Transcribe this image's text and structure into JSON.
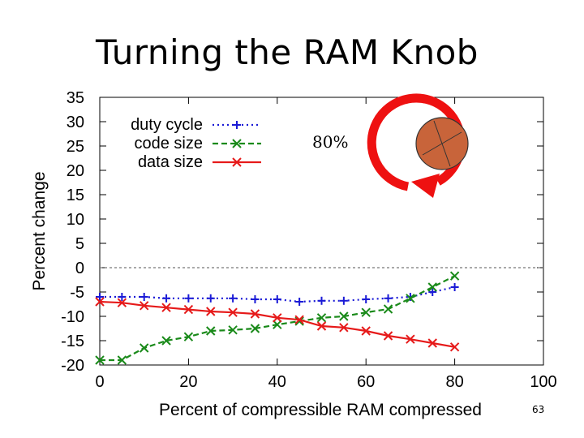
{
  "slide": {
    "title": "Turning the RAM Knob",
    "page_number": "63"
  },
  "annotation": {
    "label": "80%",
    "knob_fill": "#c8643a",
    "arrow_color": "#ee1111"
  },
  "chart_data": {
    "type": "line",
    "title": "",
    "xlabel": "Percent of compressible RAM compressed",
    "ylabel": "Percent change",
    "xlim": [
      0,
      100
    ],
    "ylim": [
      -20,
      35
    ],
    "xticks": [
      0,
      20,
      40,
      60,
      80,
      100
    ],
    "yticks": [
      35,
      30,
      25,
      20,
      15,
      10,
      5,
      0,
      -5,
      -10,
      -15,
      -20
    ],
    "reference_line": 0,
    "legend_position": "top-left",
    "series": [
      {
        "name": "duty cycle",
        "color": "#1a1ad6",
        "marker": "plus",
        "dash": "2,4",
        "x": [
          0,
          5,
          10,
          15,
          20,
          25,
          30,
          35,
          40,
          45,
          50,
          55,
          60,
          65,
          70,
          75,
          80
        ],
        "values": [
          -6,
          -6,
          -6,
          -6.3,
          -6.3,
          -6.3,
          -6.3,
          -6.5,
          -6.5,
          -7,
          -6.8,
          -6.8,
          -6.5,
          -6.3,
          -6,
          -5,
          -4
        ]
      },
      {
        "name": "code size",
        "color": "#1a8a1a",
        "marker": "x",
        "dash": "7,4",
        "x": [
          0,
          5,
          10,
          15,
          20,
          25,
          30,
          35,
          40,
          45,
          50,
          55,
          60,
          65,
          70,
          75,
          80
        ],
        "values": [
          -19,
          -19,
          -16.5,
          -15,
          -14.2,
          -13,
          -12.8,
          -12.5,
          -11.7,
          -11,
          -10.3,
          -10,
          -9.2,
          -8.5,
          -6.3,
          -4,
          -1.7
        ]
      },
      {
        "name": "data size",
        "color": "#e61a1a",
        "marker": "x",
        "dash": "",
        "x": [
          0,
          5,
          10,
          15,
          20,
          25,
          30,
          35,
          40,
          45,
          50,
          55,
          60,
          65,
          70,
          75,
          80
        ],
        "values": [
          -7,
          -7.2,
          -7.8,
          -8.2,
          -8.6,
          -9,
          -9.2,
          -9.5,
          -10.3,
          -10.7,
          -12,
          -12.3,
          -13,
          -14,
          -14.7,
          -15.5,
          -16.3
        ]
      }
    ]
  }
}
